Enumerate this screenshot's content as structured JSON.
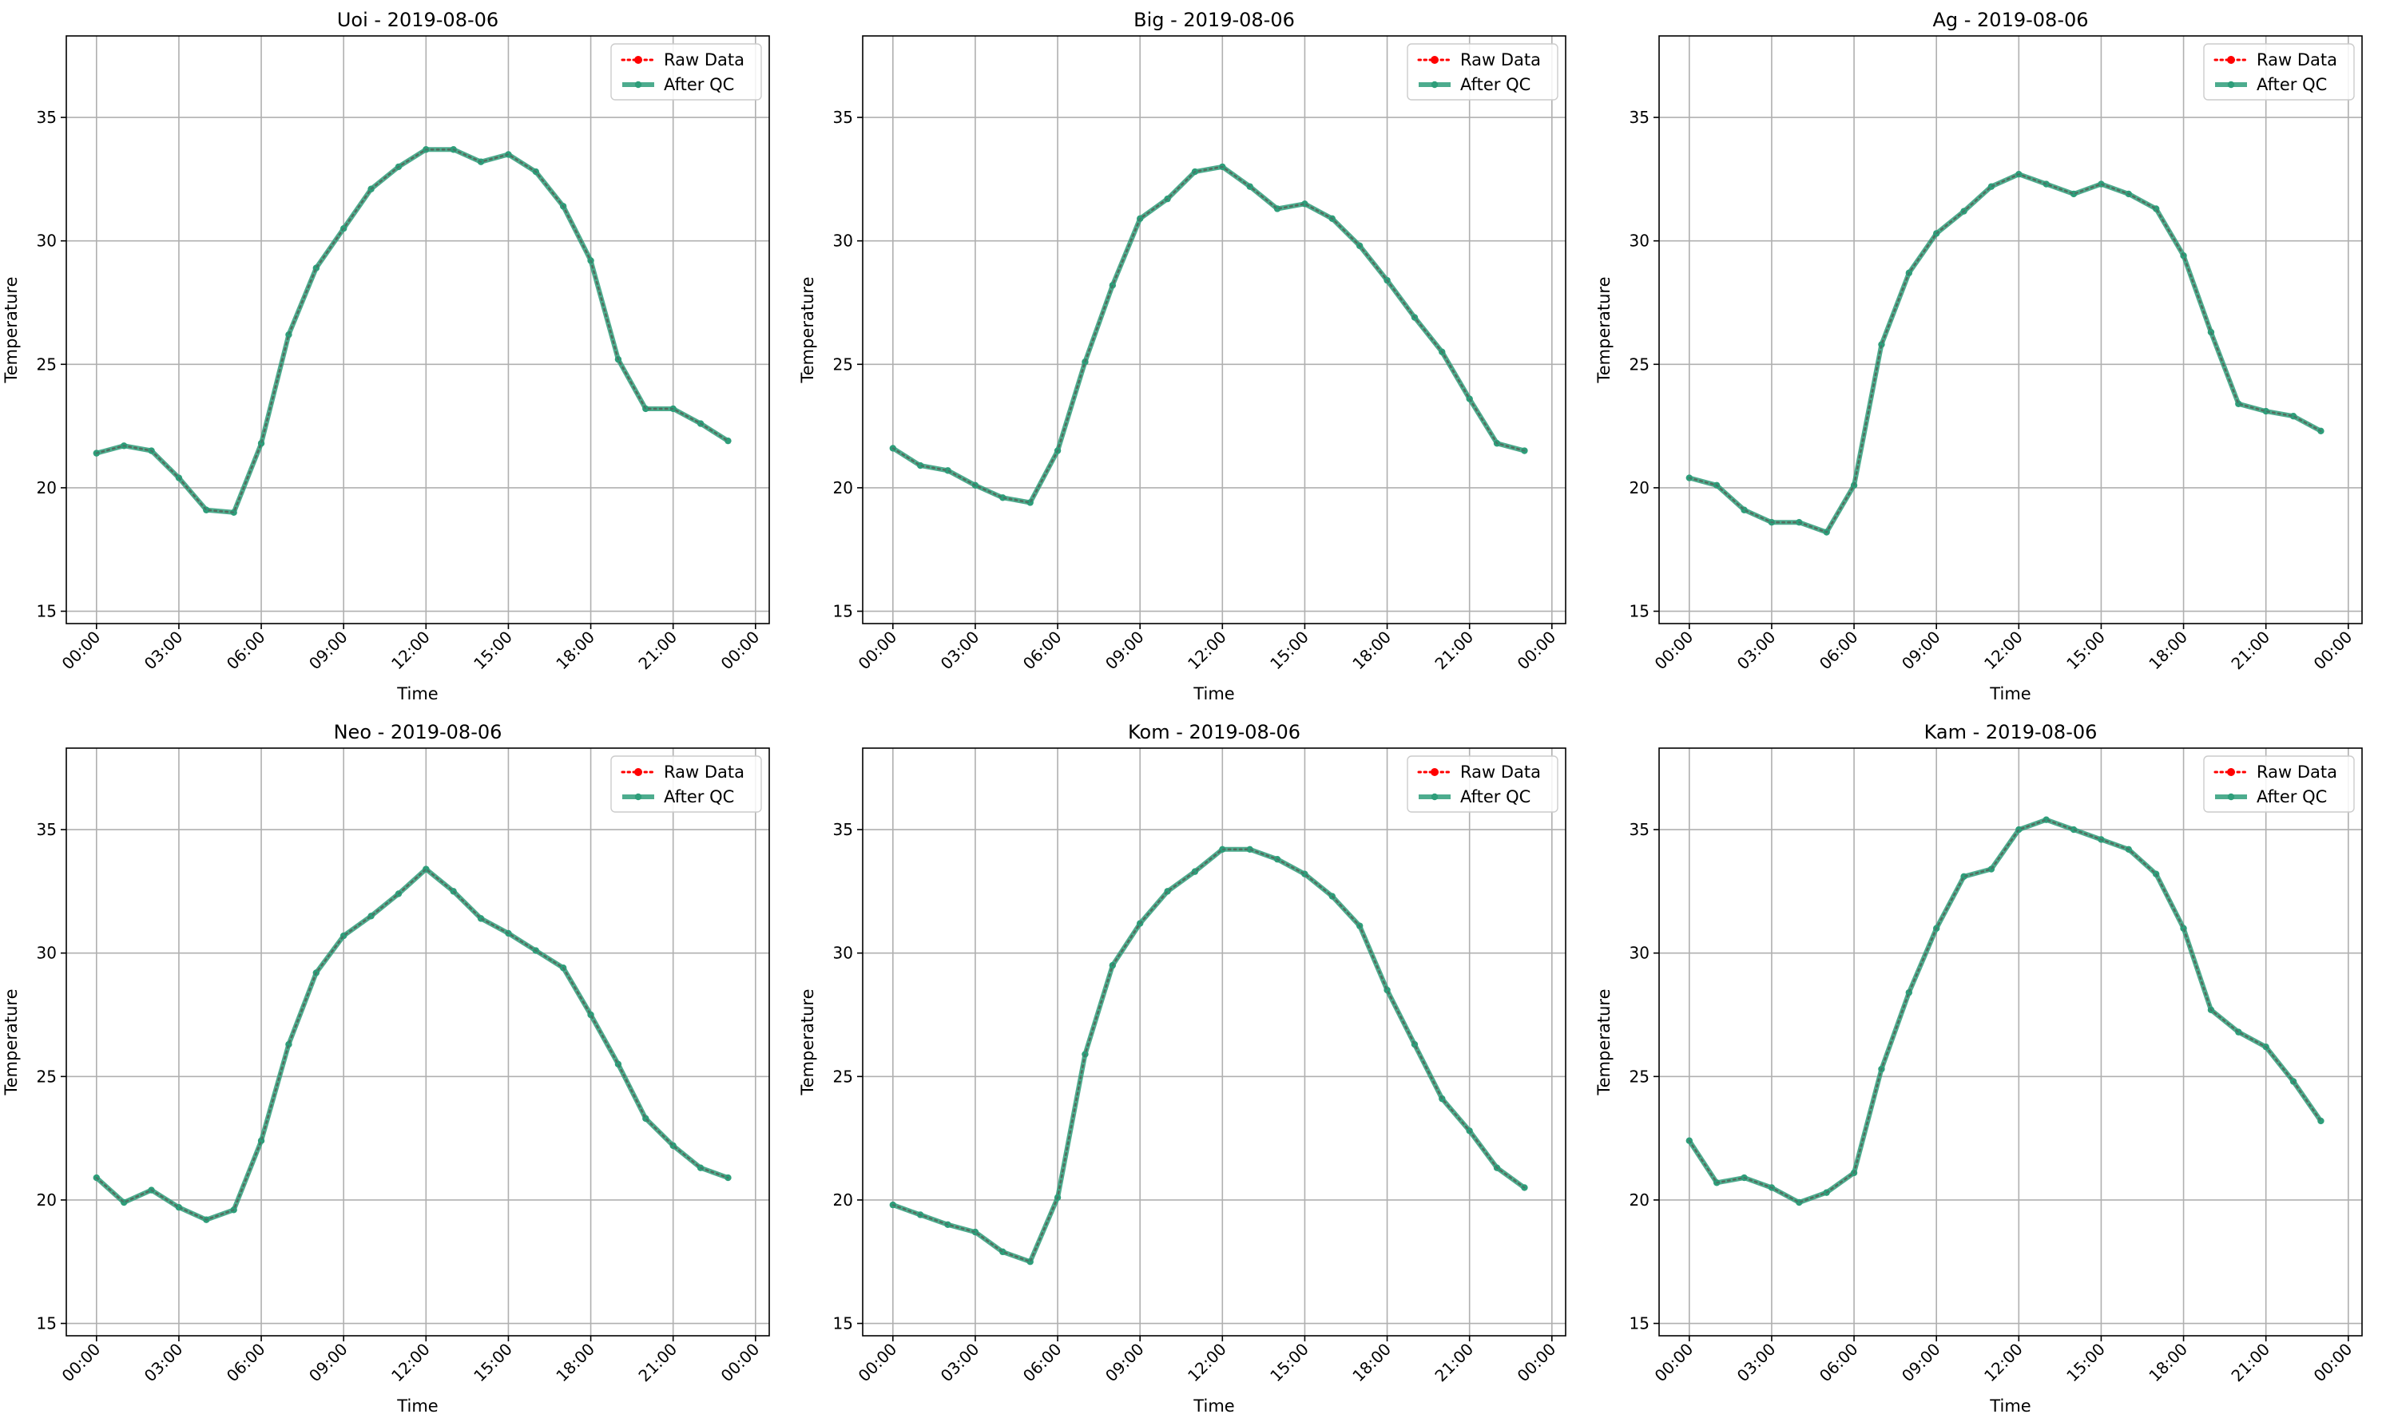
{
  "chart_data": [
    {
      "type": "line",
      "title": "Uoi - 2019-08-06",
      "xlabel": "Time",
      "ylabel": "Temperature",
      "ylim": [
        14.5,
        38.3
      ],
      "yticks": [
        "15",
        "20",
        "25",
        "30",
        "35"
      ],
      "xticks": [
        "00:00",
        "03:00",
        "06:00",
        "09:00",
        "12:00",
        "15:00",
        "18:00",
        "21:00",
        "00:00"
      ],
      "grid": true,
      "legend_position": "top-right",
      "series": [
        {
          "name": "Raw Data",
          "style": "dotted",
          "color": "#ff0000",
          "x": [
            "00:00",
            "01:00",
            "02:00",
            "03:00",
            "04:00",
            "05:00",
            "06:00",
            "07:00",
            "08:00",
            "09:00",
            "10:00",
            "11:00",
            "12:00",
            "13:00",
            "14:00",
            "15:00",
            "16:00",
            "17:00",
            "18:00",
            "19:00",
            "20:00",
            "21:00",
            "22:00",
            "23:00"
          ],
          "values": [
            21.4,
            21.7,
            21.5,
            20.4,
            19.1,
            19.0,
            21.8,
            26.2,
            28.9,
            30.5,
            32.1,
            33.0,
            33.7,
            33.7,
            33.2,
            33.5,
            32.8,
            31.4,
            29.2,
            25.2,
            23.2,
            23.2,
            22.6,
            21.9
          ]
        },
        {
          "name": "After QC",
          "style": "solid",
          "color": "#2e9e7a",
          "x": [
            "00:00",
            "01:00",
            "02:00",
            "03:00",
            "04:00",
            "05:00",
            "06:00",
            "07:00",
            "08:00",
            "09:00",
            "10:00",
            "11:00",
            "12:00",
            "13:00",
            "14:00",
            "15:00",
            "16:00",
            "17:00",
            "18:00",
            "19:00",
            "20:00",
            "21:00",
            "22:00",
            "23:00"
          ],
          "values": [
            21.4,
            21.7,
            21.5,
            20.4,
            19.1,
            19.0,
            21.8,
            26.2,
            28.9,
            30.5,
            32.1,
            33.0,
            33.7,
            33.7,
            33.2,
            33.5,
            32.8,
            31.4,
            29.2,
            25.2,
            23.2,
            23.2,
            22.6,
            21.9
          ]
        }
      ]
    },
    {
      "type": "line",
      "title": "Big - 2019-08-06",
      "xlabel": "Time",
      "ylabel": "Temperature",
      "ylim": [
        14.5,
        38.3
      ],
      "yticks": [
        "15",
        "20",
        "25",
        "30",
        "35"
      ],
      "xticks": [
        "00:00",
        "03:00",
        "06:00",
        "09:00",
        "12:00",
        "15:00",
        "18:00",
        "21:00",
        "00:00"
      ],
      "grid": true,
      "legend_position": "top-right",
      "series": [
        {
          "name": "Raw Data",
          "style": "dotted",
          "color": "#ff0000",
          "x": [
            "00:00",
            "01:00",
            "02:00",
            "03:00",
            "04:00",
            "05:00",
            "06:00",
            "07:00",
            "08:00",
            "09:00",
            "10:00",
            "11:00",
            "12:00",
            "13:00",
            "14:00",
            "15:00",
            "16:00",
            "17:00",
            "18:00",
            "19:00",
            "20:00",
            "21:00",
            "22:00",
            "23:00"
          ],
          "values": [
            21.6,
            20.9,
            20.7,
            20.1,
            19.6,
            19.4,
            21.5,
            25.1,
            28.2,
            30.9,
            31.7,
            32.8,
            33.0,
            32.2,
            31.3,
            31.5,
            30.9,
            29.8,
            28.4,
            26.9,
            25.5,
            23.6,
            21.8,
            21.5
          ]
        },
        {
          "name": "After QC",
          "style": "solid",
          "color": "#2e9e7a",
          "x": [
            "00:00",
            "01:00",
            "02:00",
            "03:00",
            "04:00",
            "05:00",
            "06:00",
            "07:00",
            "08:00",
            "09:00",
            "10:00",
            "11:00",
            "12:00",
            "13:00",
            "14:00",
            "15:00",
            "16:00",
            "17:00",
            "18:00",
            "19:00",
            "20:00",
            "21:00",
            "22:00",
            "23:00"
          ],
          "values": [
            21.6,
            20.9,
            20.7,
            20.1,
            19.6,
            19.4,
            21.5,
            25.1,
            28.2,
            30.9,
            31.7,
            32.8,
            33.0,
            32.2,
            31.3,
            31.5,
            30.9,
            29.8,
            28.4,
            26.9,
            25.5,
            23.6,
            21.8,
            21.5
          ]
        }
      ]
    },
    {
      "type": "line",
      "title": "Ag - 2019-08-06",
      "xlabel": "Time",
      "ylabel": "Temperature",
      "ylim": [
        14.5,
        38.3
      ],
      "yticks": [
        "15",
        "20",
        "25",
        "30",
        "35"
      ],
      "xticks": [
        "00:00",
        "03:00",
        "06:00",
        "09:00",
        "12:00",
        "15:00",
        "18:00",
        "21:00",
        "00:00"
      ],
      "grid": true,
      "legend_position": "top-right",
      "series": [
        {
          "name": "Raw Data",
          "style": "dotted",
          "color": "#ff0000",
          "x": [
            "00:00",
            "01:00",
            "02:00",
            "03:00",
            "04:00",
            "05:00",
            "06:00",
            "07:00",
            "08:00",
            "09:00",
            "10:00",
            "11:00",
            "12:00",
            "13:00",
            "14:00",
            "15:00",
            "16:00",
            "17:00",
            "18:00",
            "19:00",
            "20:00",
            "21:00",
            "22:00",
            "23:00"
          ],
          "values": [
            20.4,
            20.1,
            19.1,
            18.6,
            18.6,
            18.2,
            20.1,
            25.8,
            28.7,
            30.3,
            31.2,
            32.2,
            32.7,
            32.3,
            31.9,
            32.3,
            31.9,
            31.3,
            29.4,
            26.3,
            23.4,
            23.1,
            22.9,
            22.3
          ]
        },
        {
          "name": "After QC",
          "style": "solid",
          "color": "#2e9e7a",
          "x": [
            "00:00",
            "01:00",
            "02:00",
            "03:00",
            "04:00",
            "05:00",
            "06:00",
            "07:00",
            "08:00",
            "09:00",
            "10:00",
            "11:00",
            "12:00",
            "13:00",
            "14:00",
            "15:00",
            "16:00",
            "17:00",
            "18:00",
            "19:00",
            "20:00",
            "21:00",
            "22:00",
            "23:00"
          ],
          "values": [
            20.4,
            20.1,
            19.1,
            18.6,
            18.6,
            18.2,
            20.1,
            25.8,
            28.7,
            30.3,
            31.2,
            32.2,
            32.7,
            32.3,
            31.9,
            32.3,
            31.9,
            31.3,
            29.4,
            26.3,
            23.4,
            23.1,
            22.9,
            22.3
          ]
        }
      ]
    },
    {
      "type": "line",
      "title": "Neo - 2019-08-06",
      "xlabel": "Time",
      "ylabel": "Temperature",
      "ylim": [
        14.5,
        38.3
      ],
      "yticks": [
        "15",
        "20",
        "25",
        "30",
        "35"
      ],
      "xticks": [
        "00:00",
        "03:00",
        "06:00",
        "09:00",
        "12:00",
        "15:00",
        "18:00",
        "21:00",
        "00:00"
      ],
      "grid": true,
      "legend_position": "top-right",
      "series": [
        {
          "name": "Raw Data",
          "style": "dotted",
          "color": "#ff0000",
          "x": [
            "00:00",
            "01:00",
            "02:00",
            "03:00",
            "04:00",
            "05:00",
            "06:00",
            "07:00",
            "08:00",
            "09:00",
            "10:00",
            "11:00",
            "12:00",
            "13:00",
            "14:00",
            "15:00",
            "16:00",
            "17:00",
            "18:00",
            "19:00",
            "20:00",
            "21:00",
            "22:00",
            "23:00"
          ],
          "values": [
            20.9,
            19.9,
            20.4,
            19.7,
            19.2,
            19.6,
            22.4,
            26.3,
            29.2,
            30.7,
            31.5,
            32.4,
            33.4,
            32.5,
            31.4,
            30.8,
            30.1,
            29.4,
            27.5,
            25.5,
            23.3,
            22.2,
            21.3,
            20.9
          ]
        },
        {
          "name": "After QC",
          "style": "solid",
          "color": "#2e9e7a",
          "x": [
            "00:00",
            "01:00",
            "02:00",
            "03:00",
            "04:00",
            "05:00",
            "06:00",
            "07:00",
            "08:00",
            "09:00",
            "10:00",
            "11:00",
            "12:00",
            "13:00",
            "14:00",
            "15:00",
            "16:00",
            "17:00",
            "18:00",
            "19:00",
            "20:00",
            "21:00",
            "22:00",
            "23:00"
          ],
          "values": [
            20.9,
            19.9,
            20.4,
            19.7,
            19.2,
            19.6,
            22.4,
            26.3,
            29.2,
            30.7,
            31.5,
            32.4,
            33.4,
            32.5,
            31.4,
            30.8,
            30.1,
            29.4,
            27.5,
            25.5,
            23.3,
            22.2,
            21.3,
            20.9
          ]
        }
      ]
    },
    {
      "type": "line",
      "title": "Kom - 2019-08-06",
      "xlabel": "Time",
      "ylabel": "Temperature",
      "ylim": [
        14.5,
        38.3
      ],
      "yticks": [
        "15",
        "20",
        "25",
        "30",
        "35"
      ],
      "xticks": [
        "00:00",
        "03:00",
        "06:00",
        "09:00",
        "12:00",
        "15:00",
        "18:00",
        "21:00",
        "00:00"
      ],
      "grid": true,
      "legend_position": "top-right",
      "series": [
        {
          "name": "Raw Data",
          "style": "dotted",
          "color": "#ff0000",
          "x": [
            "00:00",
            "01:00",
            "02:00",
            "03:00",
            "04:00",
            "05:00",
            "06:00",
            "07:00",
            "08:00",
            "09:00",
            "10:00",
            "11:00",
            "12:00",
            "13:00",
            "14:00",
            "15:00",
            "16:00",
            "17:00",
            "18:00",
            "19:00",
            "20:00",
            "21:00",
            "22:00",
            "23:00"
          ],
          "values": [
            19.8,
            19.4,
            19.0,
            18.7,
            17.9,
            17.5,
            20.1,
            25.9,
            29.5,
            31.2,
            32.5,
            33.3,
            34.2,
            34.2,
            33.8,
            33.2,
            32.3,
            31.1,
            28.5,
            26.3,
            24.1,
            22.8,
            21.3,
            20.5
          ]
        },
        {
          "name": "After QC",
          "style": "solid",
          "color": "#2e9e7a",
          "x": [
            "00:00",
            "01:00",
            "02:00",
            "03:00",
            "04:00",
            "05:00",
            "06:00",
            "07:00",
            "08:00",
            "09:00",
            "10:00",
            "11:00",
            "12:00",
            "13:00",
            "14:00",
            "15:00",
            "16:00",
            "17:00",
            "18:00",
            "19:00",
            "20:00",
            "21:00",
            "22:00",
            "23:00"
          ],
          "values": [
            19.8,
            19.4,
            19.0,
            18.7,
            17.9,
            17.5,
            20.1,
            25.9,
            29.5,
            31.2,
            32.5,
            33.3,
            34.2,
            34.2,
            33.8,
            33.2,
            32.3,
            31.1,
            28.5,
            26.3,
            24.1,
            22.8,
            21.3,
            20.5
          ]
        }
      ]
    },
    {
      "type": "line",
      "title": "Kam - 2019-08-06",
      "xlabel": "Time",
      "ylabel": "Temperature",
      "ylim": [
        14.5,
        38.3
      ],
      "yticks": [
        "15",
        "20",
        "25",
        "30",
        "35"
      ],
      "xticks": [
        "00:00",
        "03:00",
        "06:00",
        "09:00",
        "12:00",
        "15:00",
        "18:00",
        "21:00",
        "00:00"
      ],
      "grid": true,
      "legend_position": "top-right",
      "series": [
        {
          "name": "Raw Data",
          "style": "dotted",
          "color": "#ff0000",
          "x": [
            "00:00",
            "01:00",
            "02:00",
            "03:00",
            "04:00",
            "05:00",
            "06:00",
            "07:00",
            "08:00",
            "09:00",
            "10:00",
            "11:00",
            "12:00",
            "13:00",
            "14:00",
            "15:00",
            "16:00",
            "17:00",
            "18:00",
            "19:00",
            "20:00",
            "21:00",
            "22:00",
            "23:00"
          ],
          "values": [
            22.4,
            20.7,
            20.9,
            20.5,
            19.9,
            20.3,
            21.1,
            25.3,
            28.4,
            31.0,
            33.1,
            33.4,
            35.0,
            35.4,
            35.0,
            34.6,
            34.2,
            33.2,
            31.0,
            27.7,
            26.8,
            26.2,
            24.8,
            23.2
          ]
        },
        {
          "name": "After QC",
          "style": "solid",
          "color": "#2e9e7a",
          "x": [
            "00:00",
            "01:00",
            "02:00",
            "03:00",
            "04:00",
            "05:00",
            "06:00",
            "07:00",
            "08:00",
            "09:00",
            "10:00",
            "11:00",
            "12:00",
            "13:00",
            "14:00",
            "15:00",
            "16:00",
            "17:00",
            "18:00",
            "19:00",
            "20:00",
            "21:00",
            "22:00",
            "23:00"
          ],
          "values": [
            22.4,
            20.7,
            20.9,
            20.5,
            19.9,
            20.3,
            21.1,
            25.3,
            28.4,
            31.0,
            33.1,
            33.4,
            35.0,
            35.4,
            35.0,
            34.6,
            34.2,
            33.2,
            31.0,
            27.7,
            26.8,
            26.2,
            24.8,
            23.2
          ]
        }
      ]
    }
  ]
}
